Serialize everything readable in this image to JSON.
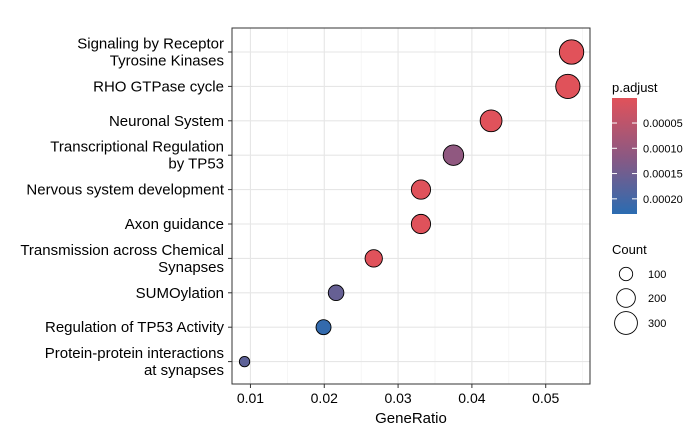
{
  "chart_data": {
    "type": "scatter",
    "title": "",
    "xlabel": "GeneRatio",
    "ylabel": "",
    "xlim": [
      0.0075,
      0.056
    ],
    "x_ticks": [
      0.01,
      0.02,
      0.03,
      0.04,
      0.05
    ],
    "x_tick_labels": [
      "0.01",
      "0.02",
      "0.03",
      "0.04",
      "0.05"
    ],
    "grid": true,
    "categories": [
      [
        "Signaling by Receptor",
        "Tyrosine Kinases"
      ],
      [
        "RHO GTPase cycle"
      ],
      [
        "Neuronal System"
      ],
      [
        "Transcriptional Regulation",
        "by TP53"
      ],
      [
        "Nervous system development"
      ],
      [
        "Axon guidance"
      ],
      [
        "Transmission across Chemical",
        "Synapses"
      ],
      [
        "SUMOylation"
      ],
      [
        "Regulation of TP53 Activity"
      ],
      [
        "Protein-protein interactions",
        "at synapses"
      ]
    ],
    "points": [
      {
        "x": 0.0535,
        "count": 343,
        "p_adjust": 1e-06
      },
      {
        "x": 0.053,
        "count": 339,
        "p_adjust": 1.5e-06
      },
      {
        "x": 0.0426,
        "count": 273,
        "p_adjust": 2e-06
      },
      {
        "x": 0.0375,
        "count": 240,
        "p_adjust": 0.00011
      },
      {
        "x": 0.0331,
        "count": 212,
        "p_adjust": 3e-06
      },
      {
        "x": 0.0331,
        "count": 212,
        "p_adjust": 3e-06
      },
      {
        "x": 0.0267,
        "count": 171,
        "p_adjust": 2.5e-06
      },
      {
        "x": 0.0216,
        "count": 138,
        "p_adjust": 0.00016
      },
      {
        "x": 0.0199,
        "count": 127,
        "p_adjust": 0.00022
      },
      {
        "x": 0.0092,
        "count": 59,
        "p_adjust": 0.00017
      }
    ],
    "legend_color": {
      "title": "p.adjust",
      "ticks": [
        5e-05,
        0.0001,
        0.00015,
        0.0002
      ],
      "tick_labels": [
        "0.00005",
        "0.00010",
        "0.00015",
        "0.00020"
      ],
      "range": [
        5e-07,
        0.00023
      ],
      "low_color": "#E1525A",
      "high_color": "#2B6CB1"
    },
    "legend_size": {
      "title": "Count",
      "values": [
        100,
        200,
        300
      ],
      "labels": [
        "100",
        "200",
        "300"
      ]
    },
    "legend_position": "right"
  }
}
